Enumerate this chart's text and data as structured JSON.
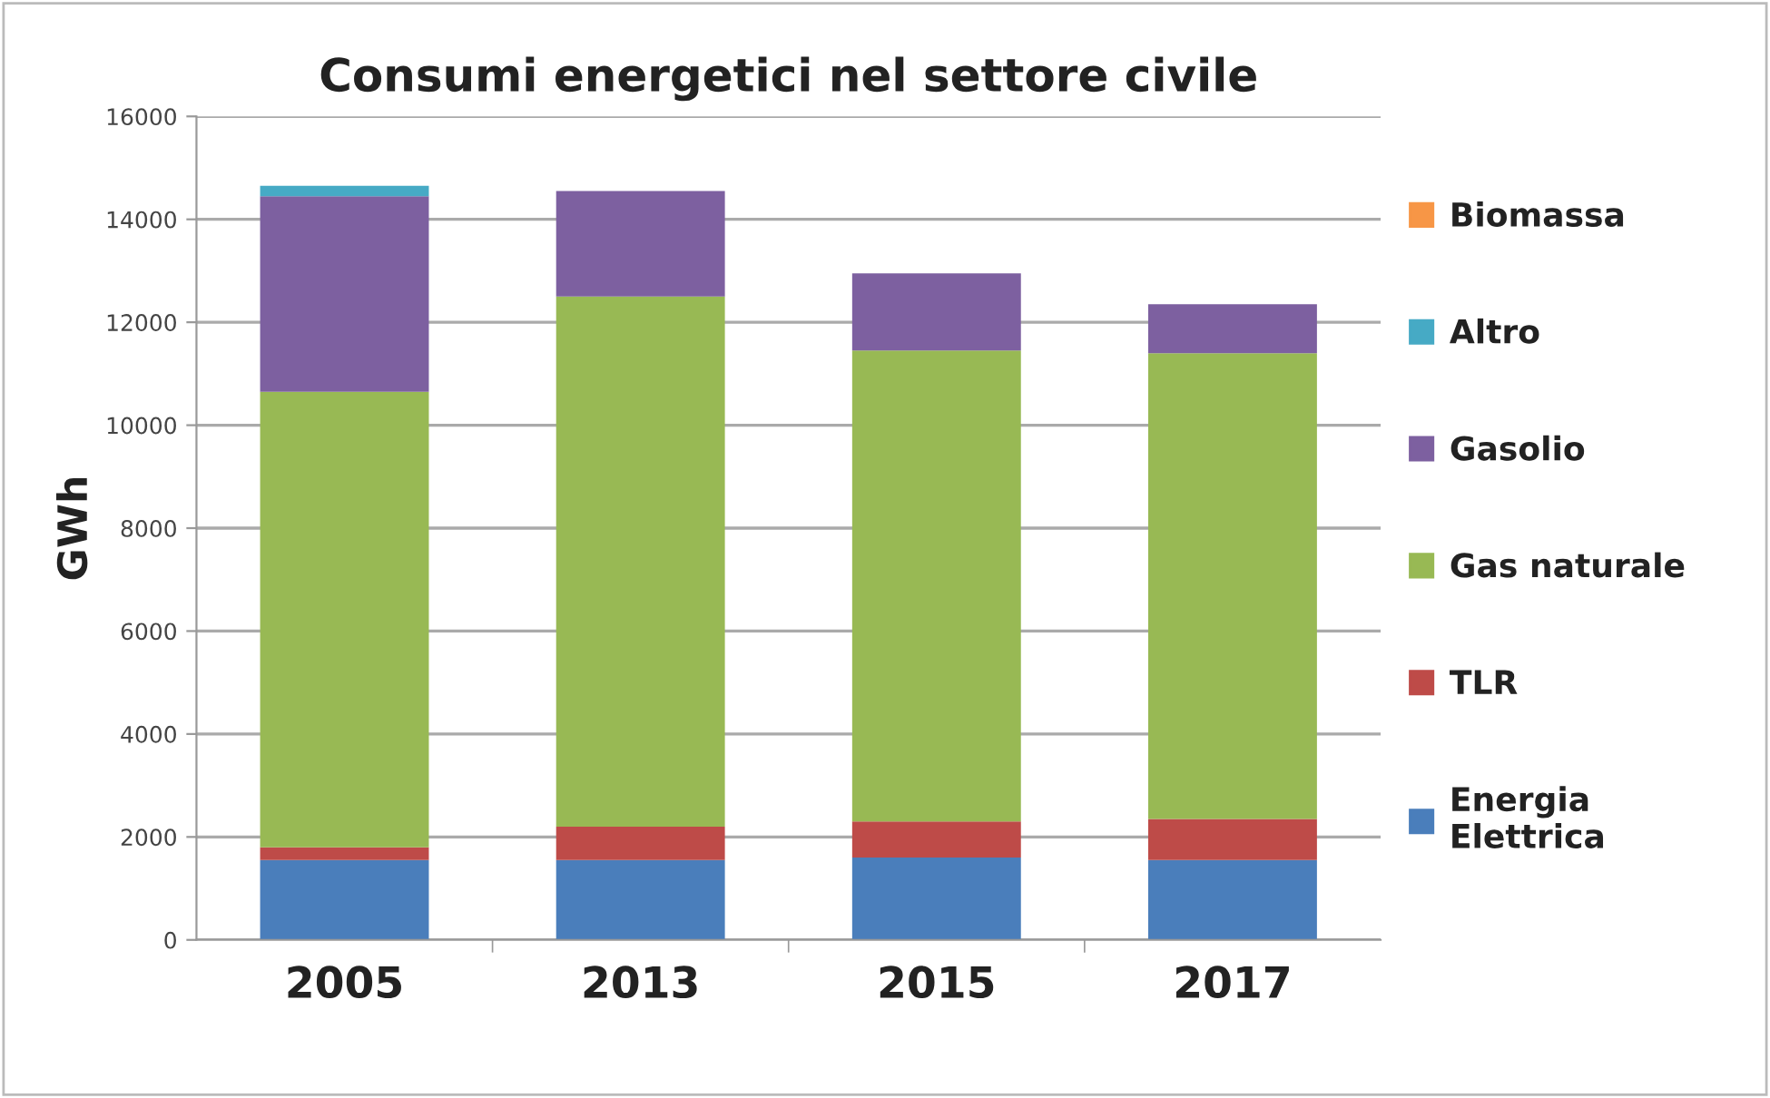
{
  "chart_data": {
    "type": "bar",
    "title": "Consumi energetici nel settore civile",
    "ylabel": "GWh",
    "categories": [
      "2005",
      "2013",
      "2015",
      "2017"
    ],
    "stacked": true,
    "series": [
      {
        "name": "Energia Elettrica",
        "color": "#4a7ebb",
        "values": [
          1550,
          1550,
          1600,
          1550
        ]
      },
      {
        "name": "TLR",
        "color": "#be4b48",
        "values": [
          250,
          650,
          700,
          800
        ]
      },
      {
        "name": "Gas naturale",
        "color": "#98b954",
        "values": [
          8850,
          10300,
          9150,
          9050
        ]
      },
      {
        "name": "Gasolio",
        "color": "#7d60a0",
        "values": [
          3800,
          2050,
          1500,
          950
        ]
      },
      {
        "name": "Altro",
        "color": "#46aac5",
        "values": [
          200,
          0,
          0,
          0
        ]
      },
      {
        "name": "Biomassa",
        "color": "#f79646",
        "values": [
          0,
          0,
          0,
          0
        ]
      }
    ],
    "ylim": [
      0,
      16000
    ],
    "yticks": [
      0,
      2000,
      4000,
      6000,
      8000,
      10000,
      12000,
      14000,
      16000
    ],
    "grid": "y",
    "legend": "right"
  }
}
